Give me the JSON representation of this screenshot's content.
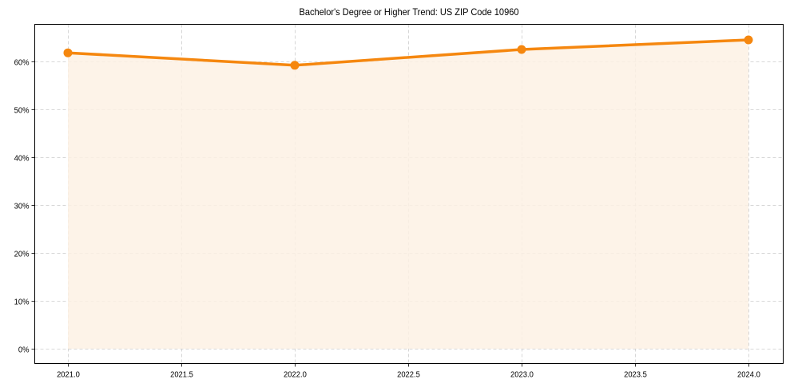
{
  "chart_data": {
    "type": "line",
    "title": "Bachelor's Degree or Higher Trend: US ZIP Code 10960",
    "xlabel": "",
    "ylabel": "",
    "x": [
      2021,
      2022,
      2023,
      2024
    ],
    "series": [
      {
        "name": "Bachelor's Degree or Higher",
        "values": [
          61.8,
          59.2,
          62.5,
          64.5
        ],
        "unit": "%"
      }
    ],
    "x_ticks": [
      "2021.0",
      "2021.5",
      "2022.0",
      "2022.5",
      "2023.0",
      "2023.5",
      "2024.0"
    ],
    "y_ticks": [
      "0%",
      "10%",
      "20%",
      "30%",
      "40%",
      "50%",
      "60%"
    ],
    "xlim": [
      2020.85,
      2024.15
    ],
    "ylim": [
      -3.2,
      67.8
    ],
    "grid": true,
    "grid_style": "dashed",
    "fill_under_line": true,
    "legend": null,
    "colors": {
      "line": "#f5870f",
      "fill": "#fdf1e4",
      "grid": "#cccccc"
    }
  }
}
